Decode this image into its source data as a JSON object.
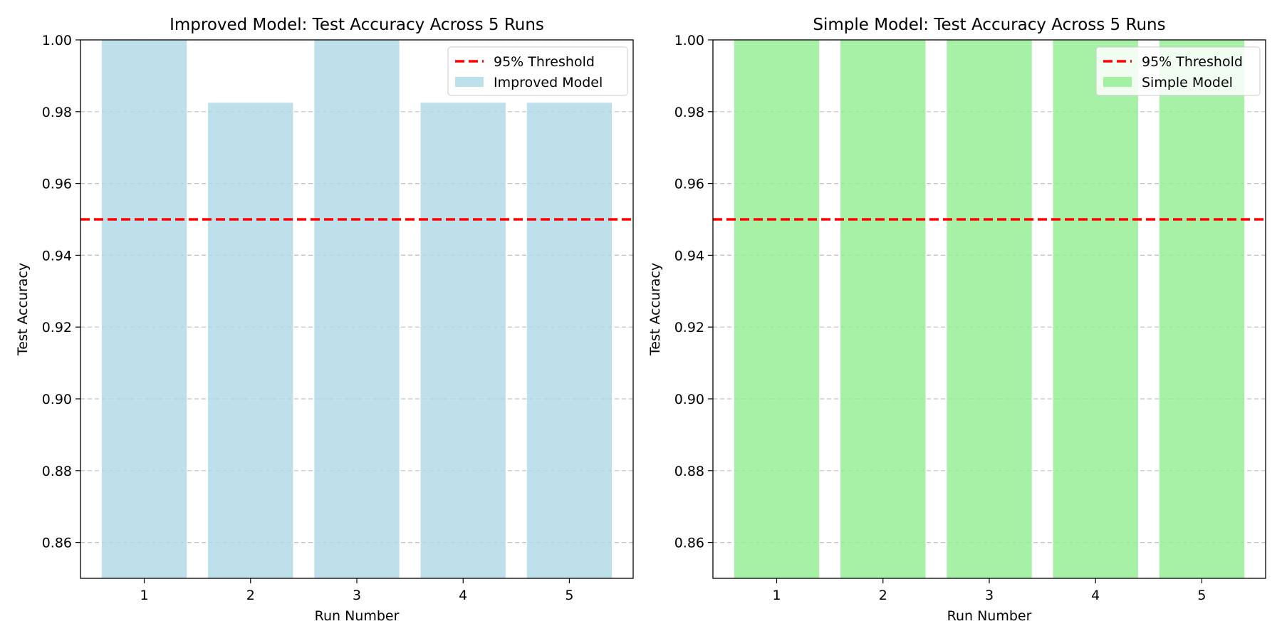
{
  "colors": {
    "threshold": "#ff0000",
    "grid": "#c0c0c0",
    "axis": "#000000",
    "legend_border": "#cccccc"
  },
  "chart_data": [
    {
      "type": "bar",
      "title": "Improved Model: Test Accuracy Across 5 Runs",
      "xlabel": "Run Number",
      "ylabel": "Test Accuracy",
      "categories": [
        "1",
        "2",
        "3",
        "4",
        "5"
      ],
      "series": [
        {
          "name": "Improved Model",
          "values": [
            1.0,
            0.9825,
            1.0,
            0.9825,
            0.9825
          ],
          "color": "#add8e6"
        }
      ],
      "threshold": {
        "name": "95% Threshold",
        "value": 0.95
      },
      "ylim": [
        0.85,
        1.0
      ],
      "yticks": [
        0.86,
        0.88,
        0.9,
        0.92,
        0.94,
        0.96,
        0.98,
        1.0
      ],
      "ytick_labels": [
        "0.86",
        "0.88",
        "0.90",
        "0.92",
        "0.94",
        "0.96",
        "0.98",
        "1.00"
      ],
      "grid": "y-dashed",
      "legend_position": "top-right"
    },
    {
      "type": "bar",
      "title": "Simple Model: Test Accuracy Across 5 Runs",
      "xlabel": "Run Number",
      "ylabel": "Test Accuracy",
      "categories": [
        "1",
        "2",
        "3",
        "4",
        "5"
      ],
      "series": [
        {
          "name": "Simple Model",
          "values": [
            1.0,
            1.0,
            1.0,
            1.0,
            1.0
          ],
          "color": "#90ee90"
        }
      ],
      "threshold": {
        "name": "95% Threshold",
        "value": 0.95
      },
      "ylim": [
        0.85,
        1.0
      ],
      "yticks": [
        0.86,
        0.88,
        0.9,
        0.92,
        0.94,
        0.96,
        0.98,
        1.0
      ],
      "ytick_labels": [
        "0.86",
        "0.88",
        "0.90",
        "0.92",
        "0.94",
        "0.96",
        "0.98",
        "1.00"
      ],
      "grid": "y-dashed",
      "legend_position": "top-right"
    }
  ]
}
